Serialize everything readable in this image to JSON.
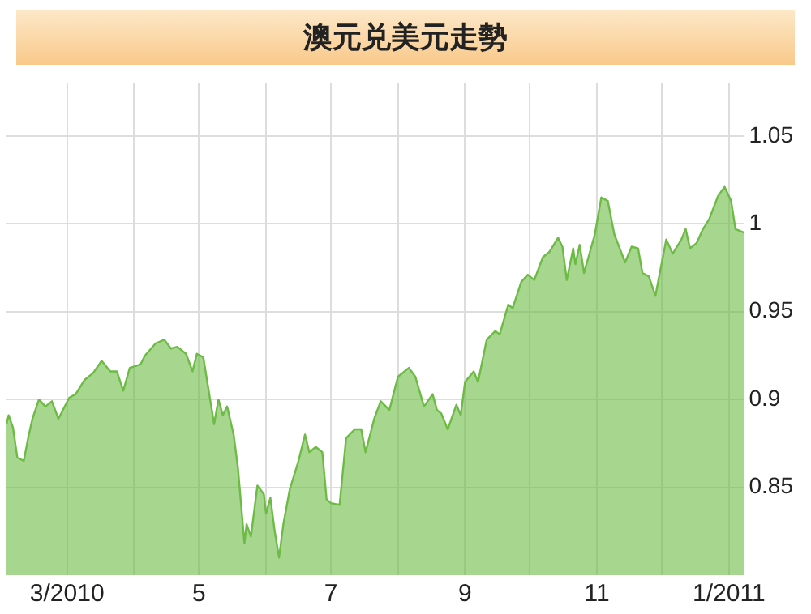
{
  "chart_data": {
    "type": "area",
    "title": "澳元兑美元走勢",
    "x": [
      "2010-02-01",
      "2010-02-02",
      "2010-02-04",
      "2010-02-06",
      "2010-02-09",
      "2010-02-11",
      "2010-02-13",
      "2010-02-16",
      "2010-02-19",
      "2010-02-22",
      "2010-02-25",
      "2010-03-02",
      "2010-03-05",
      "2010-03-09",
      "2010-03-13",
      "2010-03-17",
      "2010-03-21",
      "2010-03-24",
      "2010-03-27",
      "2010-03-30",
      "2010-04-04",
      "2010-04-06",
      "2010-04-11",
      "2010-04-15",
      "2010-04-18",
      "2010-04-21",
      "2010-04-25",
      "2010-04-28",
      "2010-04-30",
      "2010-05-03",
      "2010-05-06",
      "2010-05-08",
      "2010-05-10",
      "2010-05-12",
      "2010-05-14",
      "2010-05-17",
      "2010-05-19",
      "2010-05-22",
      "2010-05-23",
      "2010-05-25",
      "2010-05-28",
      "2010-05-31",
      "2010-06-01",
      "2010-06-03",
      "2010-06-05",
      "2010-06-07",
      "2010-06-09",
      "2010-06-12",
      "2010-06-16",
      "2010-06-19",
      "2010-06-21",
      "2010-06-24",
      "2010-06-27",
      "2010-06-29",
      "2010-07-01",
      "2010-07-05",
      "2010-07-08",
      "2010-07-12",
      "2010-07-15",
      "2010-07-17",
      "2010-07-21",
      "2010-07-24",
      "2010-07-28",
      "2010-08-01",
      "2010-08-06",
      "2010-08-09",
      "2010-08-13",
      "2010-08-17",
      "2010-08-19",
      "2010-08-21",
      "2010-08-24",
      "2010-08-28",
      "2010-08-30",
      "2010-09-01",
      "2010-09-05",
      "2010-09-07",
      "2010-09-11",
      "2010-09-15",
      "2010-09-17",
      "2010-09-21",
      "2010-09-23",
      "2010-09-27",
      "2010-09-30",
      "2010-10-03",
      "2010-10-07",
      "2010-10-10",
      "2010-10-14",
      "2010-10-16",
      "2010-10-18",
      "2010-10-21",
      "2010-10-22",
      "2010-10-24",
      "2010-10-26",
      "2010-10-31",
      "2010-11-03",
      "2010-11-06",
      "2010-11-09",
      "2010-11-14",
      "2010-11-17",
      "2010-11-20",
      "2010-11-22",
      "2010-11-25",
      "2010-11-28",
      "2010-12-03",
      "2010-12-06",
      "2010-12-10",
      "2010-12-12",
      "2010-12-14",
      "2010-12-17",
      "2010-12-20",
      "2010-12-23",
      "2010-12-27",
      "2010-12-30",
      "2011-01-02",
      "2011-01-04",
      "2011-01-08"
    ],
    "series": [
      {
        "color": "#6dbb45",
        "values": [
          0.886,
          0.891,
          0.884,
          0.867,
          0.865,
          0.878,
          0.889,
          0.9,
          0.896,
          0.899,
          0.889,
          0.901,
          0.903,
          0.911,
          0.915,
          0.922,
          0.916,
          0.916,
          0.905,
          0.918,
          0.92,
          0.925,
          0.932,
          0.934,
          0.929,
          0.93,
          0.926,
          0.916,
          0.926,
          0.924,
          0.901,
          0.886,
          0.9,
          0.891,
          0.896,
          0.88,
          0.861,
          0.818,
          0.829,
          0.822,
          0.851,
          0.846,
          0.835,
          0.844,
          0.825,
          0.81,
          0.829,
          0.849,
          0.865,
          0.88,
          0.87,
          0.873,
          0.87,
          0.843,
          0.841,
          0.84,
          0.878,
          0.883,
          0.883,
          0.87,
          0.889,
          0.899,
          0.894,
          0.913,
          0.918,
          0.913,
          0.896,
          0.903,
          0.894,
          0.892,
          0.883,
          0.897,
          0.891,
          0.91,
          0.916,
          0.91,
          0.934,
          0.939,
          0.937,
          0.954,
          0.952,
          0.967,
          0.971,
          0.968,
          0.981,
          0.984,
          0.992,
          0.987,
          0.968,
          0.986,
          0.977,
          0.988,
          0.972,
          0.994,
          1.015,
          1.013,
          0.994,
          0.978,
          0.987,
          0.986,
          0.972,
          0.97,
          0.959,
          0.991,
          0.983,
          0.991,
          0.997,
          0.986,
          0.989,
          0.997,
          1.003,
          1.016,
          1.021,
          1.013,
          0.997,
          0.995
        ]
      }
    ],
    "xlim": [
      "2010-02-01",
      "2011-01-08"
    ],
    "xticks": [
      {
        "value": "2010-03-01",
        "label": "3/2010"
      },
      {
        "value": "2010-04-01",
        "label": null
      },
      {
        "value": "2010-05-01",
        "label": "5"
      },
      {
        "value": "2010-06-01",
        "label": null
      },
      {
        "value": "2010-07-01",
        "label": "7"
      },
      {
        "value": "2010-08-01",
        "label": null
      },
      {
        "value": "2010-09-01",
        "label": "9"
      },
      {
        "value": "2010-10-01",
        "label": null
      },
      {
        "value": "2010-11-01",
        "label": "11"
      },
      {
        "value": "2010-12-01",
        "label": null
      },
      {
        "value": "2011-01-01",
        "label": "1/2011"
      }
    ],
    "ylim": [
      0.8,
      1.08
    ],
    "yticks": [
      0.85,
      0.9,
      0.95,
      1,
      1.05
    ],
    "grid": true,
    "marker": "none"
  }
}
